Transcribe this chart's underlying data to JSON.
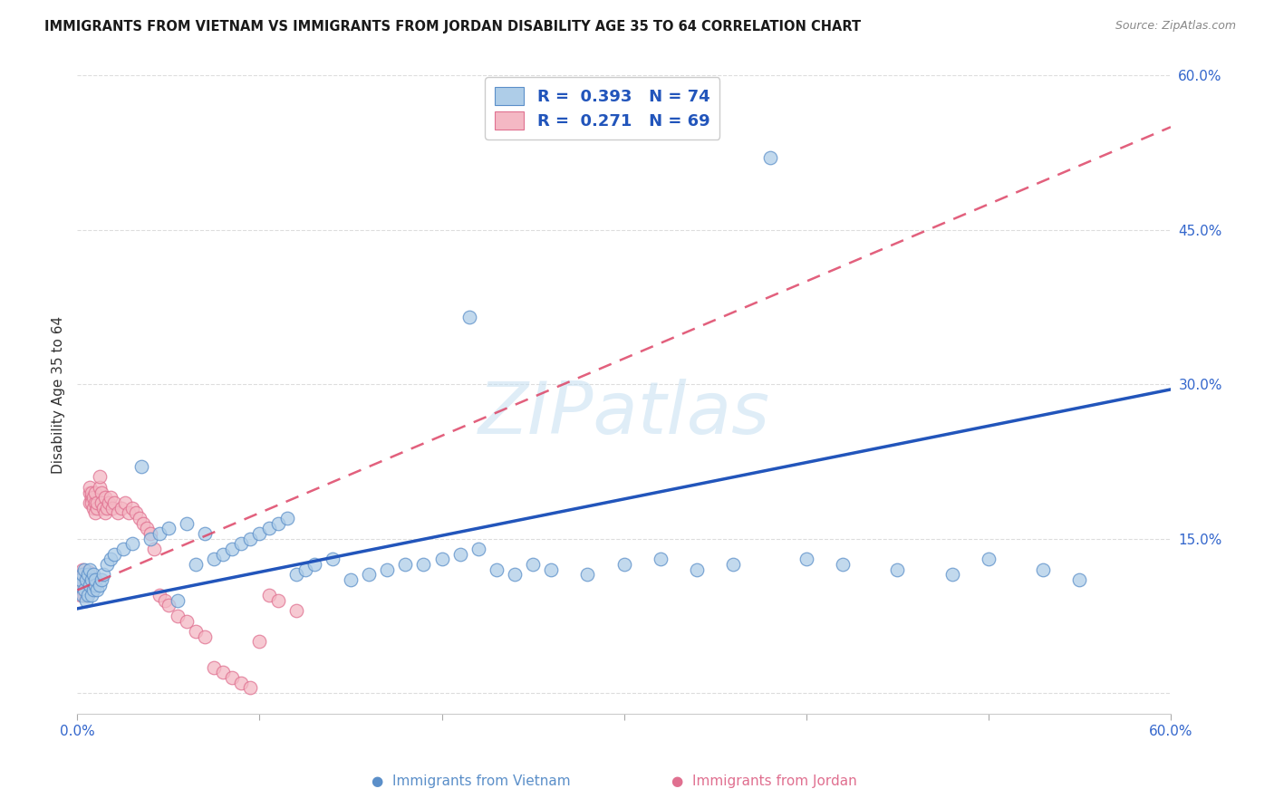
{
  "title": "IMMIGRANTS FROM VIETNAM VS IMMIGRANTS FROM JORDAN DISABILITY AGE 35 TO 64 CORRELATION CHART",
  "source": "Source: ZipAtlas.com",
  "ylabel": "Disability Age 35 to 64",
  "xlim": [
    0.0,
    0.6
  ],
  "ylim": [
    -0.02,
    0.6
  ],
  "watermark_text": "ZIPatlas",
  "vietnam_fill": "#aecde8",
  "vietnam_edge": "#5b8fc9",
  "jordan_fill": "#f4b8c4",
  "jordan_edge": "#e07090",
  "trendline_vietnam_color": "#2255bb",
  "trendline_jordan_color": "#dd4466",
  "legend_R_vietnam": "0.393",
  "legend_N_vietnam": "74",
  "legend_R_jordan": "0.271",
  "legend_N_jordan": "69",
  "viet_x": [
    0.001,
    0.002,
    0.003,
    0.003,
    0.004,
    0.004,
    0.005,
    0.005,
    0.006,
    0.006,
    0.007,
    0.007,
    0.008,
    0.008,
    0.009,
    0.009,
    0.01,
    0.01,
    0.011,
    0.012,
    0.013,
    0.014,
    0.016,
    0.018,
    0.02,
    0.025,
    0.03,
    0.035,
    0.04,
    0.045,
    0.05,
    0.055,
    0.06,
    0.065,
    0.07,
    0.075,
    0.08,
    0.085,
    0.09,
    0.095,
    0.1,
    0.105,
    0.11,
    0.115,
    0.12,
    0.125,
    0.13,
    0.14,
    0.15,
    0.16,
    0.17,
    0.18,
    0.19,
    0.2,
    0.21,
    0.215,
    0.22,
    0.23,
    0.24,
    0.25,
    0.26,
    0.28,
    0.3,
    0.32,
    0.34,
    0.36,
    0.38,
    0.4,
    0.42,
    0.45,
    0.48,
    0.5,
    0.53,
    0.55
  ],
  "viet_y": [
    0.105,
    0.11,
    0.095,
    0.115,
    0.1,
    0.12,
    0.09,
    0.11,
    0.095,
    0.115,
    0.105,
    0.12,
    0.095,
    0.11,
    0.1,
    0.115,
    0.105,
    0.11,
    0.1,
    0.105,
    0.11,
    0.115,
    0.125,
    0.13,
    0.135,
    0.14,
    0.145,
    0.22,
    0.15,
    0.155,
    0.16,
    0.09,
    0.165,
    0.125,
    0.155,
    0.13,
    0.135,
    0.14,
    0.145,
    0.15,
    0.155,
    0.16,
    0.165,
    0.17,
    0.115,
    0.12,
    0.125,
    0.13,
    0.11,
    0.115,
    0.12,
    0.125,
    0.125,
    0.13,
    0.135,
    0.365,
    0.14,
    0.12,
    0.115,
    0.125,
    0.12,
    0.115,
    0.125,
    0.13,
    0.12,
    0.125,
    0.52,
    0.13,
    0.125,
    0.12,
    0.115,
    0.13,
    0.12,
    0.11
  ],
  "jord_x": [
    0.001,
    0.001,
    0.002,
    0.002,
    0.002,
    0.003,
    0.003,
    0.003,
    0.004,
    0.004,
    0.004,
    0.005,
    0.005,
    0.005,
    0.006,
    0.006,
    0.006,
    0.007,
    0.007,
    0.007,
    0.008,
    0.008,
    0.008,
    0.009,
    0.009,
    0.01,
    0.01,
    0.01,
    0.011,
    0.011,
    0.012,
    0.012,
    0.013,
    0.013,
    0.014,
    0.015,
    0.015,
    0.016,
    0.017,
    0.018,
    0.019,
    0.02,
    0.022,
    0.024,
    0.026,
    0.028,
    0.03,
    0.032,
    0.034,
    0.036,
    0.038,
    0.04,
    0.042,
    0.045,
    0.048,
    0.05,
    0.055,
    0.06,
    0.065,
    0.07,
    0.075,
    0.08,
    0.085,
    0.09,
    0.095,
    0.1,
    0.105,
    0.11,
    0.12
  ],
  "jord_y": [
    0.11,
    0.105,
    0.115,
    0.108,
    0.095,
    0.12,
    0.112,
    0.1,
    0.115,
    0.108,
    0.095,
    0.112,
    0.105,
    0.095,
    0.118,
    0.11,
    0.1,
    0.185,
    0.195,
    0.2,
    0.19,
    0.195,
    0.185,
    0.18,
    0.19,
    0.185,
    0.195,
    0.175,
    0.18,
    0.185,
    0.2,
    0.21,
    0.195,
    0.185,
    0.18,
    0.175,
    0.19,
    0.18,
    0.185,
    0.19,
    0.18,
    0.185,
    0.175,
    0.18,
    0.185,
    0.175,
    0.18,
    0.175,
    0.17,
    0.165,
    0.16,
    0.155,
    0.14,
    0.095,
    0.09,
    0.085,
    0.075,
    0.07,
    0.06,
    0.055,
    0.025,
    0.02,
    0.015,
    0.01,
    0.005,
    0.05,
    0.095,
    0.09,
    0.08
  ],
  "viet_trend_x": [
    0.0,
    0.6
  ],
  "viet_trend_y": [
    0.082,
    0.295
  ],
  "jord_trend_x": [
    0.0,
    0.6
  ],
  "jord_trend_y": [
    0.1,
    0.55
  ]
}
